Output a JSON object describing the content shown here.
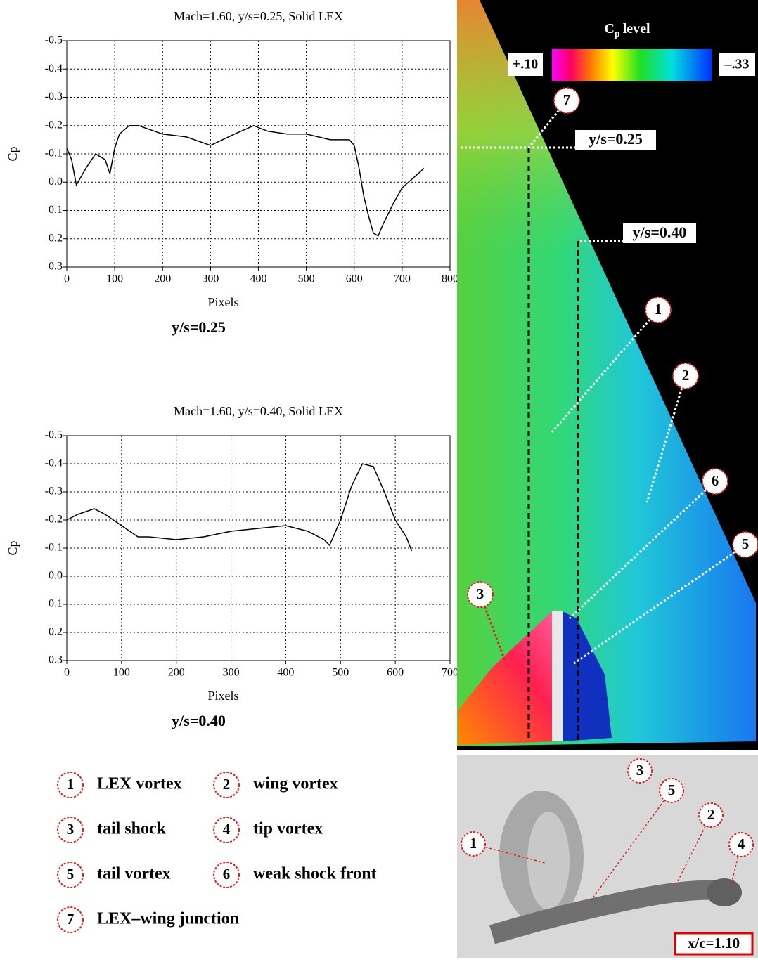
{
  "chart_data": [
    {
      "type": "line",
      "title": "Mach=1.60, y/s=0.25, Solid LEX",
      "x_label": "Pixels",
      "y_label": "Cp",
      "caption": "y/s=0.25",
      "x": [
        0,
        10,
        20,
        40,
        60,
        80,
        90,
        100,
        110,
        130,
        150,
        200,
        250,
        300,
        350,
        390,
        420,
        460,
        500,
        550,
        590,
        600,
        610,
        620,
        630,
        640,
        650,
        660,
        680,
        700,
        720,
        740,
        745
      ],
      "values": [
        -0.12,
        -0.08,
        0.01,
        -0.05,
        -0.1,
        -0.08,
        -0.03,
        -0.12,
        -0.17,
        -0.2,
        -0.2,
        -0.17,
        -0.16,
        -0.13,
        -0.17,
        -0.2,
        -0.18,
        -0.17,
        -0.17,
        -0.15,
        -0.15,
        -0.13,
        -0.05,
        0.05,
        0.12,
        0.18,
        0.19,
        0.15,
        0.08,
        0.02,
        -0.01,
        -0.04,
        -0.05
      ],
      "color": "#000000",
      "grid": true,
      "xlim": [
        0,
        800
      ],
      "xticks": [
        0,
        100,
        200,
        300,
        400,
        500,
        600,
        700,
        800
      ],
      "ylim": [
        0.3,
        -0.5
      ],
      "yticks": [
        -0.5,
        -0.4,
        -0.3,
        -0.2,
        -0.1,
        {
          "value": 0,
          "label": "0.0"
        },
        0.1,
        0.2,
        0.3
      ]
    },
    {
      "type": "line",
      "title": "Mach=1.60, y/s=0.40, Solid LEX",
      "x_label": "Pixels",
      "y_label": "Cp",
      "caption": "y/s=0.40",
      "x": [
        0,
        20,
        50,
        70,
        100,
        130,
        150,
        200,
        250,
        300,
        350,
        400,
        440,
        470,
        480,
        500,
        520,
        540,
        560,
        580,
        600,
        620,
        630
      ],
      "values": [
        -0.2,
        -0.22,
        -0.24,
        -0.22,
        -0.18,
        -0.14,
        -0.14,
        -0.13,
        -0.14,
        -0.16,
        -0.17,
        -0.18,
        -0.16,
        -0.13,
        -0.11,
        -0.2,
        -0.32,
        -0.4,
        -0.39,
        -0.3,
        -0.2,
        -0.14,
        -0.09
      ],
      "color": "#000000",
      "grid": true,
      "xlim": [
        0,
        700
      ],
      "xticks": [
        0,
        100,
        200,
        300,
        400,
        500,
        600,
        700
      ],
      "ylim": [
        0.3,
        -0.5
      ],
      "yticks": [
        -0.5,
        -0.4,
        -0.3,
        -0.2,
        -0.1,
        {
          "value": 0,
          "label": "0.0"
        },
        0.1,
        0.2,
        0.3
      ]
    }
  ],
  "psp_image": {
    "colorbar": {
      "title_main": "C",
      "title_sub": "p",
      "title_rest": "level",
      "max_label": "+.10",
      "min_label": "–.33"
    },
    "stations": [
      "y/s=0.25",
      "y/s=0.40"
    ],
    "callouts": [
      "7",
      "1",
      "2",
      "6",
      "5",
      "3"
    ]
  },
  "legend": [
    {
      "number": "1",
      "text": "LEX vortex"
    },
    {
      "number": "2",
      "text": "wing vortex"
    },
    {
      "number": "3",
      "text": "tail shock"
    },
    {
      "number": "4",
      "text": "tip vortex"
    },
    {
      "number": "5",
      "text": "tail vortex"
    },
    {
      "number": "6",
      "text": "weak shock front"
    },
    {
      "number": "7",
      "text": "LEX–wing junction"
    }
  ],
  "schlieren_image": {
    "callouts": [
      "3",
      "5",
      "1",
      "2",
      "4"
    ],
    "label": "x/c=1.10"
  }
}
